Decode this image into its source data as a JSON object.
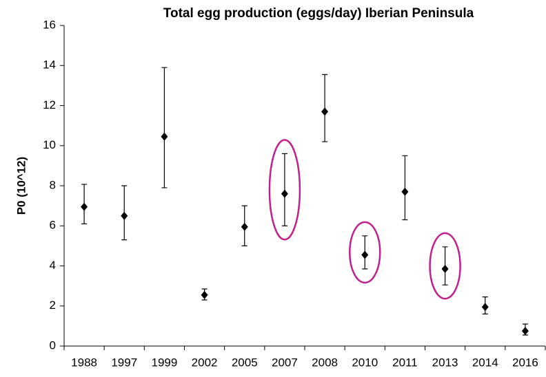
{
  "chart_data": {
    "type": "errorbar",
    "title": "Total egg production (eggs/day) Iberian Peninsula",
    "y_label": "P0 (10^12)",
    "categories": [
      "1988",
      "1997",
      "1999",
      "2002",
      "2005",
      "2007",
      "2008",
      "2010",
      "2011",
      "2013",
      "2014",
      "2016"
    ],
    "values": [
      6.95,
      6.5,
      10.45,
      2.55,
      5.95,
      7.6,
      11.7,
      4.55,
      7.7,
      3.85,
      1.95,
      0.75
    ],
    "upper": [
      8.07,
      8.0,
      13.9,
      2.85,
      7.0,
      9.6,
      13.55,
      5.5,
      9.5,
      4.95,
      2.45,
      1.1
    ],
    "lower": [
      6.1,
      5.3,
      7.9,
      2.3,
      5.0,
      6.0,
      10.2,
      3.85,
      6.3,
      3.05,
      1.6,
      0.55
    ],
    "color": "#000000",
    "highlighted": [
      5,
      7,
      9
    ],
    "highlight_color": "#c0208f",
    "ylim": [
      0,
      16
    ],
    "yticks": [
      0,
      2,
      4,
      6,
      8,
      10,
      12,
      14,
      16
    ]
  }
}
